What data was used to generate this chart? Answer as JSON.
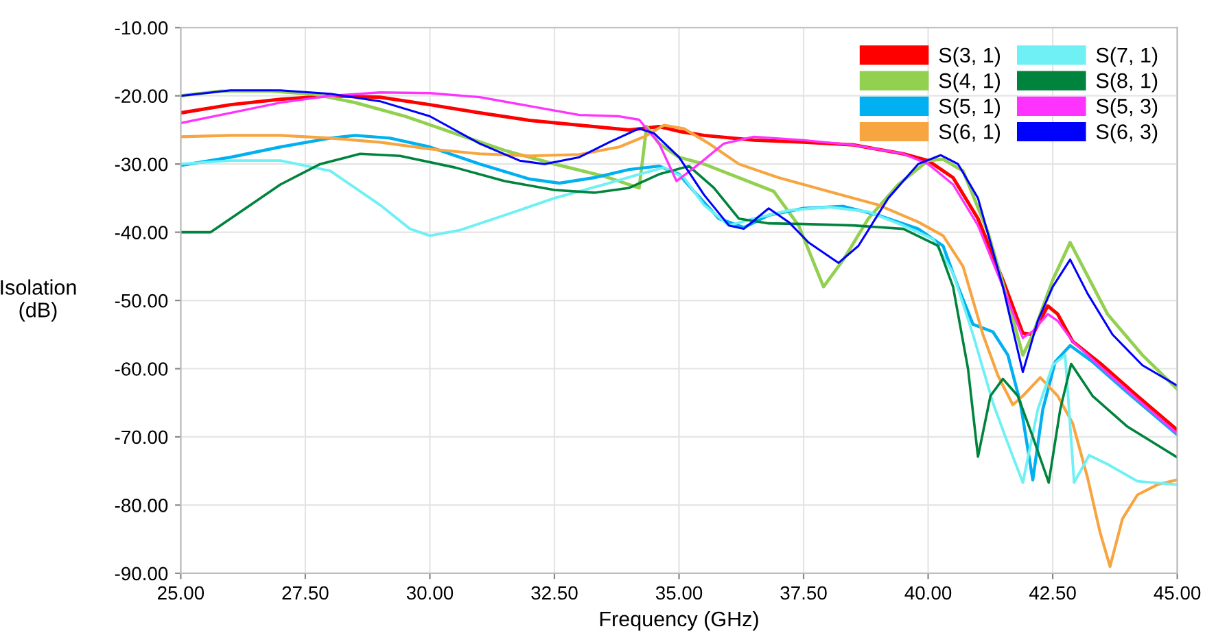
{
  "chart_data": {
    "type": "line",
    "xlabel": "Frequency (GHz)",
    "ylabel": "Isolation\n(dB)",
    "xlim": [
      25,
      45
    ],
    "ylim": [
      -90,
      -10
    ],
    "xticks": [
      {
        "value": 25,
        "label": "25.00"
      },
      {
        "value": 27.5,
        "label": "27.50"
      },
      {
        "value": 30,
        "label": "30.00"
      },
      {
        "value": 32.5,
        "label": "32.50"
      },
      {
        "value": 35,
        "label": "35.00"
      },
      {
        "value": 37.5,
        "label": "37.50"
      },
      {
        "value": 40,
        "label": "40.00"
      },
      {
        "value": 42.5,
        "label": "42.50"
      },
      {
        "value": 45,
        "label": "45.00"
      }
    ],
    "yticks": [
      {
        "value": -90,
        "label": "-90.00"
      },
      {
        "value": -80,
        "label": "-80.00"
      },
      {
        "value": -70,
        "label": "-70.00"
      },
      {
        "value": -60,
        "label": "-60.00"
      },
      {
        "value": -50,
        "label": "-50.00"
      },
      {
        "value": -40,
        "label": "-40.00"
      },
      {
        "value": -30,
        "label": "-30.00"
      },
      {
        "value": -20,
        "label": "-20.00"
      },
      {
        "value": -10,
        "label": "-10.00"
      }
    ],
    "grid": true,
    "legend": "top right",
    "marker": "none",
    "line_style": "solid",
    "series": [
      {
        "name": "S(3, 1)",
        "color": "#ff0000",
        "x": [
          25,
          26,
          27,
          28,
          29,
          30,
          31,
          32,
          33,
          34,
          34.6,
          35,
          35.5,
          36.5,
          37.5,
          38.5,
          39.5,
          40,
          40.5,
          41,
          41.5,
          41.9,
          42.1,
          42.4,
          42.6,
          42.9,
          43.5,
          44.2,
          45
        ],
        "values": [
          -22.5,
          -21.3,
          -20.5,
          -20,
          -20.2,
          -21.3,
          -22.5,
          -23.6,
          -24.3,
          -25,
          -24.5,
          -25.2,
          -25.8,
          -26.5,
          -26.8,
          -27.2,
          -28.5,
          -29.5,
          -32,
          -38,
          -47,
          -54.8,
          -55,
          -50.8,
          -52,
          -56,
          -59.5,
          -64,
          -69
        ]
      },
      {
        "name": "S(4, 1)",
        "color": "#92d050",
        "x": [
          25,
          25.8,
          26.8,
          27.7,
          28.5,
          29.5,
          30.5,
          31.5,
          32.5,
          33.5,
          34.2,
          34.35,
          34.6,
          35,
          35.5,
          36.2,
          36.9,
          37.4,
          37.9,
          38.3,
          38.8,
          39.4,
          40,
          40.3,
          40.7,
          41.2,
          41.6,
          41.9,
          42.1,
          42.5,
          42.85,
          43.1,
          43.6,
          44.3,
          45
        ],
        "values": [
          -20,
          -19.3,
          -19.3,
          -19.8,
          -21,
          -23,
          -25.5,
          -28,
          -30,
          -31.8,
          -33.5,
          -24.5,
          -27,
          -29,
          -30,
          -32,
          -34,
          -39,
          -48,
          -44,
          -38,
          -33,
          -29.5,
          -29.3,
          -31,
          -40,
          -50,
          -58,
          -55,
          -47,
          -41.5,
          -45,
          -52,
          -58,
          -63
        ]
      },
      {
        "name": "S(5, 1)",
        "color": "#00b0f0",
        "x": [
          25,
          26,
          27,
          28,
          28.5,
          29.2,
          30,
          31,
          32,
          32.6,
          33.3,
          34,
          34.6,
          35,
          35.3,
          35.8,
          36.3,
          36.8,
          37.5,
          38.3,
          39,
          39.8,
          40.3,
          40.6,
          40.9,
          41.3,
          41.6,
          41.85,
          42.1,
          42.3,
          42.55,
          42.85,
          43.3,
          44,
          45
        ],
        "values": [
          -30.2,
          -29,
          -27.5,
          -26.2,
          -25.8,
          -26.2,
          -27.5,
          -30,
          -32.2,
          -32.8,
          -32,
          -30.8,
          -30.3,
          -31.5,
          -34,
          -38,
          -39.3,
          -37.5,
          -36.5,
          -36.2,
          -37.5,
          -39.5,
          -42,
          -48,
          -53.5,
          -54.6,
          -58,
          -65,
          -76.3,
          -66,
          -59,
          -56.6,
          -59,
          -63.5,
          -69.7
        ]
      },
      {
        "name": "S(6, 1)",
        "color": "#f7a541",
        "x": [
          25,
          26,
          27,
          28,
          29,
          30,
          31,
          32,
          33,
          33.8,
          34.3,
          34.7,
          35.1,
          35.6,
          36.2,
          37,
          38,
          39,
          39.8,
          40.3,
          40.7,
          41.1,
          41.4,
          41.7,
          41.9,
          42.25,
          42.6,
          42.9,
          43.2,
          43.45,
          43.65,
          43.9,
          44.2,
          44.6,
          45
        ],
        "values": [
          -26,
          -25.8,
          -25.8,
          -26.2,
          -26.8,
          -27.8,
          -28.5,
          -28.8,
          -28.6,
          -27.5,
          -26,
          -24.3,
          -24.8,
          -27,
          -30,
          -32,
          -34,
          -36,
          -38.5,
          -40.5,
          -45,
          -55,
          -61,
          -65.3,
          -64,
          -61.3,
          -64,
          -68,
          -76,
          -84,
          -89,
          -82,
          -78.5,
          -77,
          -76.3
        ]
      },
      {
        "name": "S(7, 1)",
        "color": "#6ef0f5",
        "x": [
          25,
          26,
          27,
          28,
          29,
          29.6,
          30,
          30.6,
          31.5,
          32.5,
          33.5,
          34.2,
          34.7,
          35.1,
          35.5,
          36,
          36.5,
          37.2,
          38,
          38.8,
          39.5,
          40.1,
          40.5,
          40.9,
          41.3,
          41.55,
          41.9,
          42.2,
          42.5,
          42.75,
          42.93,
          43.23,
          43.6,
          44.2,
          45
        ],
        "values": [
          -30,
          -29.5,
          -29.5,
          -31,
          -36,
          -39.5,
          -40.5,
          -39.7,
          -37.5,
          -35,
          -33,
          -31.5,
          -30.5,
          -32,
          -36,
          -39,
          -38,
          -36.8,
          -36.3,
          -37,
          -39,
          -41,
          -46,
          -55,
          -65,
          -70,
          -76.7,
          -66,
          -59.5,
          -58,
          -76.7,
          -72.7,
          -74,
          -76.5,
          -77
        ]
      },
      {
        "name": "S(8, 1)",
        "color": "#00843d",
        "x": [
          25,
          25.6,
          26.2,
          27,
          27.8,
          28.6,
          29.4,
          30.5,
          31.5,
          32.5,
          33.3,
          34,
          34.6,
          35.2,
          35.7,
          36.2,
          36.8,
          37.5,
          38.5,
          39.5,
          40.2,
          40.5,
          40.8,
          41.0,
          41.25,
          41.5,
          41.8,
          42.1,
          42.42,
          42.65,
          42.87,
          43.3,
          44,
          45
        ],
        "values": [
          -40,
          -40,
          -37,
          -33,
          -30,
          -28.5,
          -28.8,
          -30.5,
          -32.5,
          -33.8,
          -34.2,
          -33.5,
          -31.5,
          -30.3,
          -33.5,
          -38,
          -38.7,
          -38.8,
          -39,
          -39.5,
          -42,
          -48,
          -60,
          -72.9,
          -64,
          -61.5,
          -64,
          -70,
          -76.7,
          -66,
          -59.3,
          -64,
          -68.5,
          -73
        ]
      },
      {
        "name": "S(5, 3)",
        "color": "#ff33ff",
        "x": [
          25,
          26,
          27,
          28,
          29,
          30,
          31,
          32,
          33,
          33.8,
          34.2,
          34.6,
          34.95,
          35.4,
          35.9,
          36.5,
          37.5,
          38.5,
          39.5,
          40,
          40.5,
          41,
          41.5,
          41.9,
          42.1,
          42.4,
          42.6,
          42.9,
          43.5,
          44.2,
          45
        ],
        "values": [
          -24,
          -22.5,
          -21,
          -20,
          -19.5,
          -19.6,
          -20.2,
          -21.5,
          -22.8,
          -23,
          -23.5,
          -27,
          -32.5,
          -30,
          -27,
          -26,
          -26.5,
          -27.2,
          -28.5,
          -30,
          -33,
          -39,
          -48,
          -55.5,
          -54.5,
          -52,
          -53,
          -56,
          -60,
          -64.5,
          -69.5
        ]
      },
      {
        "name": "S(6, 3)",
        "color": "#0000ff",
        "x": [
          25,
          26,
          27,
          28,
          29,
          30,
          31,
          31.8,
          32.3,
          33,
          33.6,
          34.2,
          34.5,
          35,
          35.5,
          36,
          36.3,
          36.8,
          37.2,
          37.6,
          38.2,
          38.6,
          39.2,
          39.8,
          40.25,
          40.6,
          41,
          41.5,
          41.9,
          42.2,
          42.5,
          42.85,
          43.2,
          43.7,
          44.3,
          45
        ],
        "values": [
          -20,
          -19.2,
          -19.2,
          -19.7,
          -20.8,
          -23,
          -27,
          -29.5,
          -30,
          -29,
          -26.8,
          -24.8,
          -25.5,
          -29,
          -34.5,
          -39,
          -39.5,
          -36.5,
          -38.5,
          -41.5,
          -44.5,
          -42,
          -35,
          -30,
          -28.7,
          -30,
          -35,
          -48,
          -60.5,
          -53,
          -48,
          -44,
          -49,
          -55,
          -59.5,
          -62.5
        ]
      }
    ]
  }
}
